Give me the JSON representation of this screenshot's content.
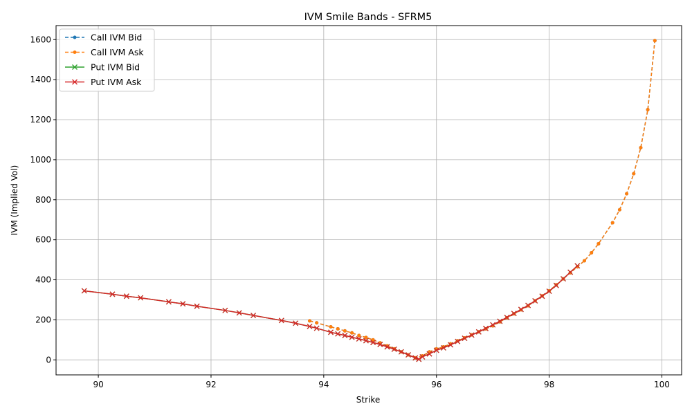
{
  "chart_data": {
    "type": "line",
    "title": "IVM Smile Bands - SFRM5",
    "xlabel": "Strike",
    "ylabel": "IVM (Implied Vol)",
    "xlim": [
      89.25,
      100.35
    ],
    "ylim": [
      -75,
      1670
    ],
    "xticks": [
      90,
      92,
      94,
      96,
      98,
      100
    ],
    "yticks": [
      0,
      200,
      400,
      600,
      800,
      1000,
      1200,
      1400,
      1600
    ],
    "grid": true,
    "legend_position": "top-left",
    "series": [
      {
        "name": "Call IVM Bid",
        "color": "#1f77b4",
        "linestyle": "dashed",
        "marker": "dot",
        "x": [
          93.75,
          93.875,
          94.125,
          94.25,
          94.375,
          94.5,
          94.625,
          94.75,
          94.875,
          95.0,
          95.125,
          95.25,
          95.375,
          95.5,
          95.625,
          95.75,
          95.875,
          96.0,
          96.125,
          96.25,
          96.375,
          96.5,
          96.625,
          96.75,
          96.875,
          97.0,
          97.125,
          97.25,
          97.375,
          97.5,
          97.625,
          97.75,
          97.875,
          98.0,
          98.125,
          98.25,
          98.375,
          98.5,
          98.625,
          98.75,
          98.875,
          99.125,
          99.25,
          99.375,
          99.5,
          99.625,
          99.75,
          99.875
        ],
        "y": [
          195,
          185,
          165,
          155,
          145,
          135,
          122,
          112,
          100,
          85,
          70,
          55,
          40,
          25,
          10,
          20,
          40,
          55,
          65,
          80,
          95,
          110,
          125,
          140,
          155,
          170,
          190,
          210,
          230,
          250,
          270,
          295,
          320,
          345,
          375,
          405,
          435,
          465,
          495,
          535,
          580,
          685,
          750,
          830,
          930,
          1060,
          1250,
          1595
        ]
      },
      {
        "name": "Call IVM Ask",
        "color": "#ff7f0e",
        "linestyle": "dashed",
        "marker": "dot",
        "x": [
          93.75,
          93.875,
          94.125,
          94.25,
          94.375,
          94.5,
          94.625,
          94.75,
          94.875,
          95.0,
          95.125,
          95.25,
          95.375,
          95.5,
          95.625,
          95.75,
          95.875,
          96.0,
          96.125,
          96.25,
          96.375,
          96.5,
          96.625,
          96.75,
          96.875,
          97.0,
          97.125,
          97.25,
          97.375,
          97.5,
          97.625,
          97.75,
          97.875,
          98.0,
          98.125,
          98.25,
          98.375,
          98.5,
          98.625,
          98.75,
          98.875,
          99.125,
          99.25,
          99.375,
          99.5,
          99.625,
          99.75,
          99.875
        ],
        "y": [
          195,
          185,
          165,
          155,
          145,
          135,
          122,
          112,
          100,
          85,
          70,
          55,
          40,
          25,
          10,
          20,
          40,
          55,
          65,
          80,
          95,
          110,
          125,
          140,
          155,
          170,
          190,
          210,
          230,
          250,
          270,
          295,
          320,
          345,
          375,
          405,
          435,
          465,
          495,
          535,
          580,
          685,
          750,
          830,
          930,
          1060,
          1250,
          1595
        ]
      },
      {
        "name": "Put IVM Bid",
        "color": "#2ca02c",
        "linestyle": "solid",
        "marker": "x",
        "x": [
          89.75,
          90.25,
          90.5,
          90.75,
          91.25,
          91.5,
          91.75,
          92.25,
          92.5,
          92.75,
          93.25,
          93.5,
          93.75,
          93.875,
          94.125,
          94.25,
          94.375,
          94.5,
          94.625,
          94.75,
          94.875,
          95.0,
          95.125,
          95.25,
          95.375,
          95.5,
          95.625,
          95.6875,
          95.75,
          95.875,
          96.0,
          96.125,
          96.25,
          96.375,
          96.5,
          96.625,
          96.75,
          96.875,
          97.0,
          97.125,
          97.25,
          97.375,
          97.5,
          97.625,
          97.75,
          97.875,
          98.0,
          98.125,
          98.25,
          98.375,
          98.5
        ],
        "y": [
          345,
          328,
          318,
          310,
          290,
          280,
          268,
          247,
          235,
          222,
          197,
          183,
          167,
          158,
          138,
          130,
          122,
          113,
          105,
          96,
          87,
          77,
          65,
          53,
          40,
          25,
          10,
          3,
          15,
          30,
          48,
          60,
          75,
          92,
          108,
          124,
          140,
          157,
          175,
          193,
          212,
          232,
          252,
          272,
          295,
          318,
          343,
          372,
          405,
          438,
          470
        ]
      },
      {
        "name": "Put IVM Ask",
        "color": "#d62728",
        "linestyle": "solid",
        "marker": "x",
        "x": [
          89.75,
          90.25,
          90.5,
          90.75,
          91.25,
          91.5,
          91.75,
          92.25,
          92.5,
          92.75,
          93.25,
          93.5,
          93.75,
          93.875,
          94.125,
          94.25,
          94.375,
          94.5,
          94.625,
          94.75,
          94.875,
          95.0,
          95.125,
          95.25,
          95.375,
          95.5,
          95.625,
          95.6875,
          95.75,
          95.875,
          96.0,
          96.125,
          96.25,
          96.375,
          96.5,
          96.625,
          96.75,
          96.875,
          97.0,
          97.125,
          97.25,
          97.375,
          97.5,
          97.625,
          97.75,
          97.875,
          98.0,
          98.125,
          98.25,
          98.375,
          98.5
        ],
        "y": [
          345,
          328,
          318,
          310,
          290,
          280,
          268,
          247,
          235,
          222,
          197,
          183,
          167,
          158,
          138,
          130,
          122,
          113,
          105,
          96,
          87,
          77,
          65,
          53,
          40,
          25,
          10,
          3,
          15,
          30,
          48,
          60,
          75,
          92,
          108,
          124,
          140,
          157,
          175,
          193,
          212,
          232,
          252,
          272,
          295,
          318,
          343,
          372,
          405,
          438,
          470
        ]
      }
    ]
  }
}
